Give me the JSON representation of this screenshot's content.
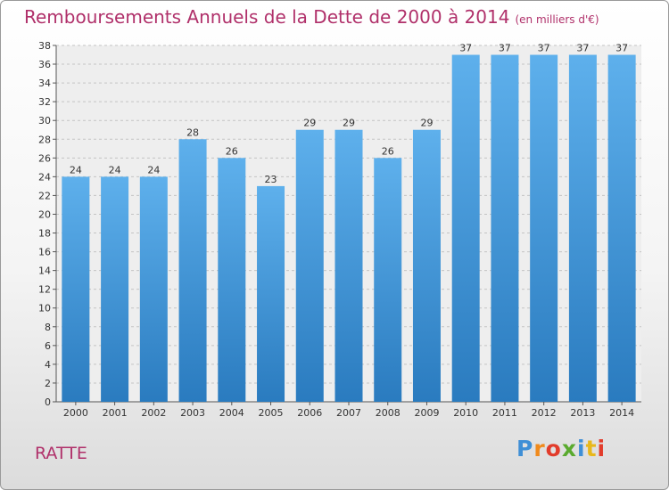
{
  "title": "Remboursements Annuels de la Dette de 2000 à 2014",
  "subtitle": "(en milliers d'€)",
  "commune": "RATTE",
  "logo": "Proxiti",
  "colors": {
    "title": "#b0306a",
    "bar_top": "#5eb0ec",
    "bar_bottom": "#2a7bbf"
  },
  "chart_data": {
    "type": "bar",
    "title": "Remboursements Annuels de la Dette de 2000 à 2014",
    "subtitle": "(en milliers d'€)",
    "xlabel": "",
    "ylabel": "",
    "categories": [
      "2000",
      "2001",
      "2002",
      "2003",
      "2004",
      "2005",
      "2006",
      "2007",
      "2008",
      "2009",
      "2010",
      "2011",
      "2012",
      "2013",
      "2014"
    ],
    "values": [
      24,
      24,
      24,
      28,
      26,
      23,
      29,
      29,
      26,
      29,
      37,
      37,
      37,
      37,
      37
    ],
    "ylim": [
      0,
      38
    ],
    "yticks": [
      0,
      2,
      4,
      6,
      8,
      10,
      12,
      14,
      16,
      18,
      20,
      22,
      24,
      26,
      28,
      30,
      32,
      34,
      36,
      38
    ],
    "grid": true,
    "data_labels": true
  }
}
